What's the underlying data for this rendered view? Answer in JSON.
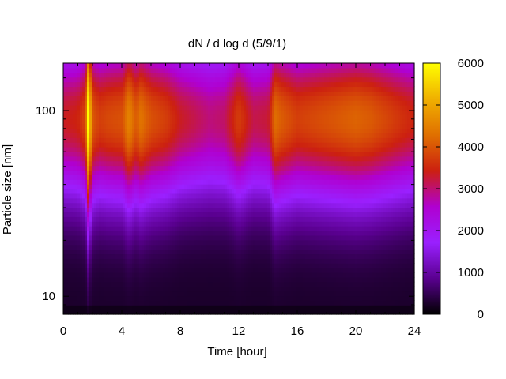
{
  "chart_data": {
    "type": "heatmap",
    "title": "dN / d log d (5/9/1)",
    "xlabel": "Time [hour]",
    "ylabel": "Particle size [nm]",
    "xlim": [
      0,
      24
    ],
    "ylim": [
      8,
      180
    ],
    "y_scale": "log",
    "x_ticks": [
      "0",
      "4",
      "8",
      "12",
      "16",
      "20",
      "24"
    ],
    "y_ticks": [
      "10",
      "100"
    ],
    "colorbar": {
      "min": 0,
      "max": 6000,
      "ticks": [
        "0",
        "1000",
        "2000",
        "3000",
        "4000",
        "5000",
        "6000"
      ],
      "colormap": [
        "#000000",
        "#5a0090",
        "#9a20ff",
        "#b000d0",
        "#cc2010",
        "#e07000",
        "#f0b000",
        "#ffff00"
      ]
    },
    "peak_diameter_nm": 90,
    "time_samples_hour": [
      0,
      1,
      1.5,
      1.7,
      2,
      2.5,
      3,
      4,
      4.5,
      5,
      5.3,
      6,
      7,
      8,
      9,
      10,
      11,
      12,
      13,
      14,
      14.5,
      15,
      16,
      17,
      18,
      19,
      20,
      21,
      22,
      23,
      24
    ],
    "peak_concentration": [
      3100,
      3200,
      3600,
      5800,
      3800,
      3500,
      3600,
      3700,
      4300,
      3800,
      4100,
      3700,
      3500,
      3100,
      2900,
      2700,
      2800,
      3500,
      2900,
      3000,
      4000,
      3800,
      3500,
      3600,
      3700,
      3800,
      3900,
      3800,
      3600,
      3400,
      3200
    ]
  }
}
